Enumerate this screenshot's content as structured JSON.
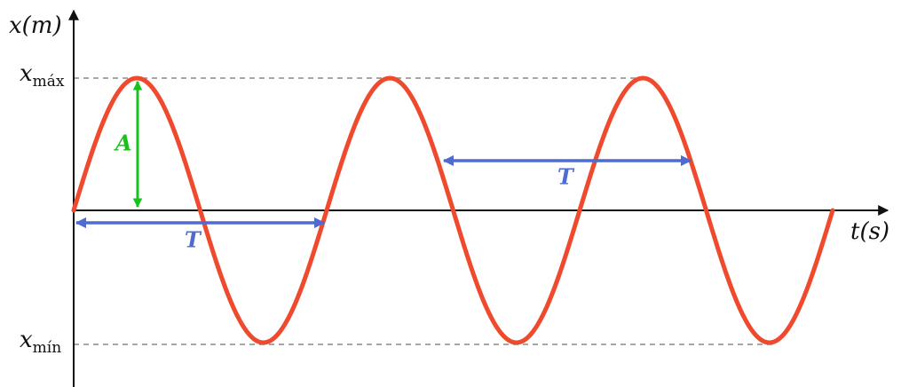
{
  "y_axis_label": "x(m)",
  "x_axis_label": "t(s)",
  "max_label": {
    "symbol": "x",
    "subscript": "máx"
  },
  "min_label": {
    "symbol": "x",
    "subscript": "mín"
  },
  "amplitude_label": "A",
  "period_labels": [
    "T",
    "T"
  ]
}
